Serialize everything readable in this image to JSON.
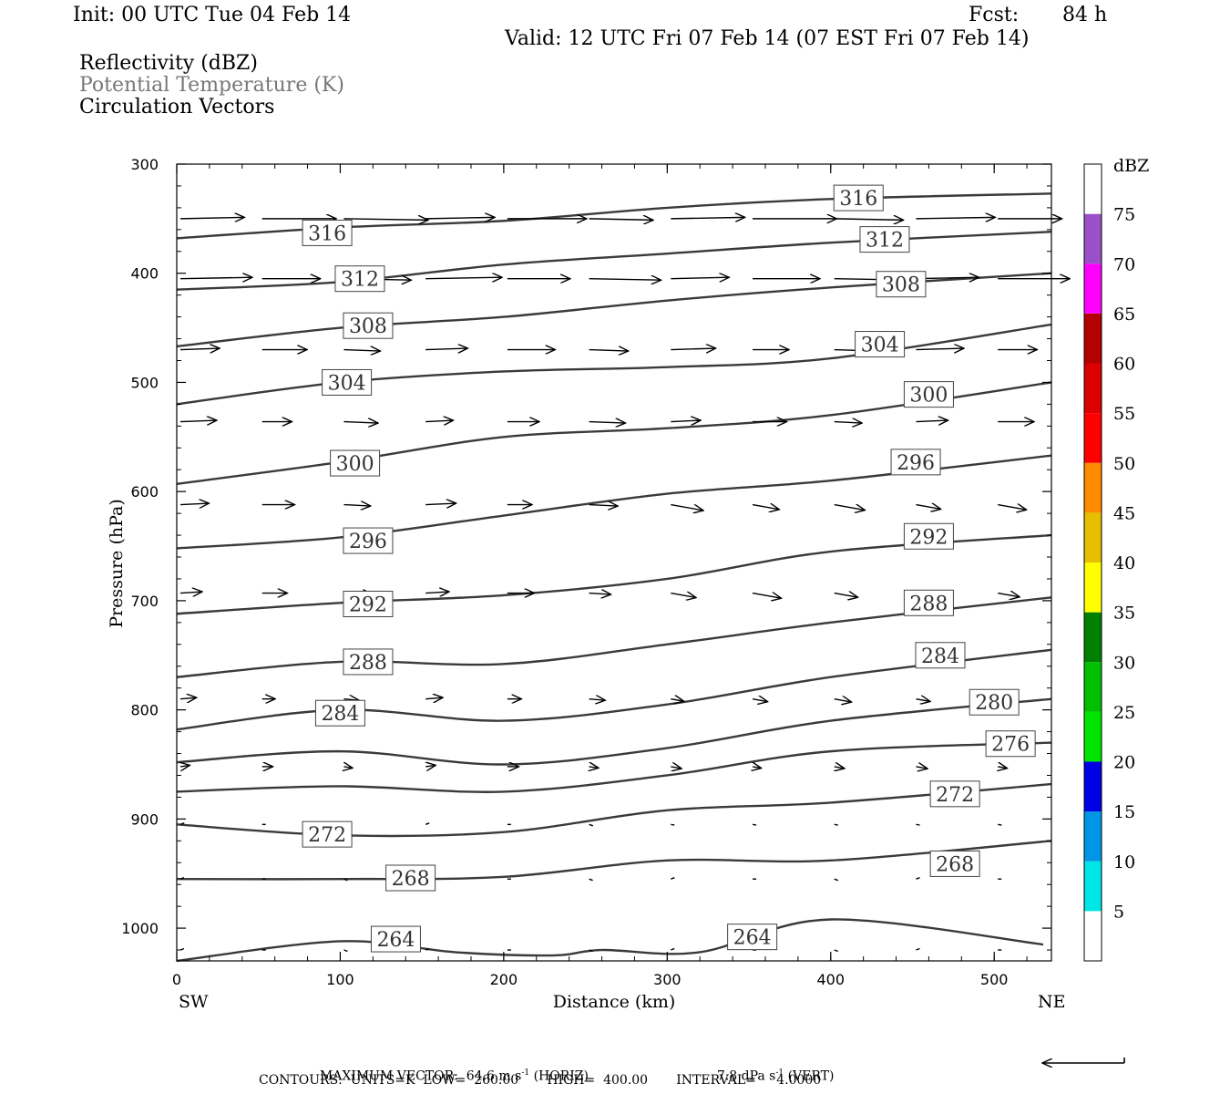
{
  "header": {
    "init": "Init: 00 UTC Tue 04 Feb 14",
    "fcst_label": "Fcst:",
    "fcst_value": "84 h",
    "valid": "Valid: 12 UTC Fri 07 Feb 14 (07 EST Fri 07 Feb 14)",
    "field1": "Reflectivity (dBZ)",
    "field2": "Potential Temperature (K)",
    "field3": "Circulation Vectors"
  },
  "footer": {
    "max_vector_label": "MAXIMUM VECTOR:",
    "max_horiz": "64.6 m s",
    "max_horiz_sup": "-1",
    "max_horiz_tag": "(HORIZ)",
    "max_vert": "7.8 dPa s",
    "max_vert_sup": "-1",
    "max_vert_tag": "(VERT)",
    "contours": "CONTOURS:  UNITS=K  LOW=  260.00       HIGH=  400.00       INTERVAL=     4.0000"
  },
  "colors": {
    "contour": "#3a3a3a",
    "vector": "#000000",
    "potential_temperature_title": "#777777"
  },
  "chart_data": {
    "type": "cross-section",
    "xlabel": "Distance (km)",
    "ylabel": "Pressure (hPa)",
    "x_left_label": "SW",
    "x_right_label": "NE",
    "xlim": [
      0,
      535
    ],
    "ylim": [
      1030,
      300
    ],
    "y_scale": "linear",
    "x_ticks": [
      0,
      100,
      200,
      300,
      400,
      500
    ],
    "y_ticks": [
      300,
      400,
      500,
      600,
      700,
      800,
      900,
      1000
    ],
    "grid": false,
    "colorbar": {
      "title": "dBZ",
      "levels": [
        "5",
        "10",
        "15",
        "20",
        "25",
        "30",
        "35",
        "40",
        "45",
        "50",
        "55",
        "60",
        "65",
        "70",
        "75"
      ],
      "colors": [
        "#ffffff",
        "#00e5e5",
        "#0096e5",
        "#0000e5",
        "#00e500",
        "#00c000",
        "#008000",
        "#ffff00",
        "#e5bf00",
        "#ff8c00",
        "#ff0000",
        "#dc0000",
        "#b40000",
        "#ff00ff",
        "#9a50c8",
        "#ffffff"
      ]
    },
    "contours": [
      {
        "label": "316",
        "points": [
          [
            0,
            368
          ],
          [
            100,
            358
          ],
          [
            200,
            352
          ],
          [
            300,
            340
          ],
          [
            400,
            332
          ],
          [
            535,
            327
          ]
        ],
        "labels_at": [
          [
            92,
            363
          ],
          [
            417,
            331
          ]
        ]
      },
      {
        "label": "312",
        "points": [
          [
            0,
            415
          ],
          [
            100,
            408
          ],
          [
            200,
            392
          ],
          [
            300,
            382
          ],
          [
            400,
            372
          ],
          [
            535,
            362
          ]
        ],
        "labels_at": [
          [
            112,
            405
          ],
          [
            433,
            369
          ]
        ]
      },
      {
        "label": "308",
        "points": [
          [
            0,
            467
          ],
          [
            100,
            450
          ],
          [
            200,
            440
          ],
          [
            300,
            425
          ],
          [
            400,
            413
          ],
          [
            535,
            400
          ]
        ],
        "labels_at": [
          [
            117,
            448
          ],
          [
            443,
            410
          ]
        ]
      },
      {
        "label": "304",
        "points": [
          [
            0,
            520
          ],
          [
            100,
            500
          ],
          [
            200,
            490
          ],
          [
            300,
            486
          ],
          [
            400,
            478
          ],
          [
            535,
            447
          ]
        ],
        "labels_at": [
          [
            104,
            500
          ],
          [
            430,
            465
          ]
        ]
      },
      {
        "label": "300",
        "points": [
          [
            0,
            593
          ],
          [
            100,
            573
          ],
          [
            200,
            550
          ],
          [
            300,
            542
          ],
          [
            400,
            530
          ],
          [
            535,
            500
          ]
        ],
        "labels_at": [
          [
            109,
            574
          ],
          [
            460,
            511
          ]
        ]
      },
      {
        "label": "296",
        "points": [
          [
            0,
            652
          ],
          [
            100,
            642
          ],
          [
            200,
            622
          ],
          [
            300,
            602
          ],
          [
            400,
            590
          ],
          [
            535,
            567
          ]
        ],
        "labels_at": [
          [
            117,
            645
          ],
          [
            452,
            573
          ]
        ]
      },
      {
        "label": "292",
        "points": [
          [
            0,
            712
          ],
          [
            100,
            702
          ],
          [
            200,
            695
          ],
          [
            300,
            680
          ],
          [
            400,
            655
          ],
          [
            535,
            640
          ]
        ],
        "labels_at": [
          [
            117,
            703
          ],
          [
            460,
            641
          ]
        ]
      },
      {
        "label": "288",
        "points": [
          [
            0,
            770
          ],
          [
            100,
            756
          ],
          [
            200,
            758
          ],
          [
            300,
            740
          ],
          [
            400,
            720
          ],
          [
            535,
            697
          ]
        ],
        "labels_at": [
          [
            117,
            756
          ],
          [
            460,
            702
          ]
        ]
      },
      {
        "label": "284",
        "points": [
          [
            0,
            818
          ],
          [
            100,
            800
          ],
          [
            200,
            810
          ],
          [
            300,
            795
          ],
          [
            400,
            770
          ],
          [
            535,
            745
          ]
        ],
        "labels_at": [
          [
            100,
            803
          ],
          [
            467,
            750
          ]
        ]
      },
      {
        "label": "280",
        "points": [
          [
            0,
            848
          ],
          [
            100,
            838
          ],
          [
            200,
            850
          ],
          [
            300,
            835
          ],
          [
            400,
            810
          ],
          [
            535,
            790
          ]
        ],
        "labels_at": [
          [
            500,
            793
          ]
        ]
      },
      {
        "label": "276",
        "points": [
          [
            0,
            875
          ],
          [
            100,
            870
          ],
          [
            200,
            875
          ],
          [
            300,
            860
          ],
          [
            400,
            838
          ],
          [
            535,
            830
          ]
        ],
        "labels_at": [
          [
            510,
            831
          ]
        ]
      },
      {
        "label": "272",
        "points": [
          [
            0,
            905
          ],
          [
            100,
            915
          ],
          [
            200,
            912
          ],
          [
            300,
            892
          ],
          [
            400,
            885
          ],
          [
            535,
            868
          ]
        ],
        "labels_at": [
          [
            92,
            914
          ],
          [
            476,
            877
          ]
        ]
      },
      {
        "label": "268",
        "points": [
          [
            0,
            955
          ],
          [
            100,
            955
          ],
          [
            200,
            953
          ],
          [
            300,
            938
          ],
          [
            400,
            938
          ],
          [
            535,
            920
          ]
        ],
        "labels_at": [
          [
            143,
            954
          ],
          [
            476,
            941
          ]
        ]
      },
      {
        "label": "264",
        "points": [
          [
            0,
            1030
          ],
          [
            100,
            1012
          ],
          [
            170,
            1022
          ],
          [
            230,
            1025
          ],
          [
            260,
            1020
          ],
          [
            320,
            1022
          ],
          [
            400,
            992
          ],
          [
            530,
            1015
          ]
        ],
        "labels_at": [
          [
            134,
            1010
          ],
          [
            352,
            1008
          ]
        ]
      }
    ],
    "vector_rows_hPa": [
      350,
      405,
      470,
      536,
      612,
      693,
      790,
      852,
      905,
      955,
      1020
    ],
    "vector_columns_km": [
      0,
      50,
      100,
      150,
      200,
      250,
      300,
      350,
      400,
      450,
      500
    ]
  }
}
